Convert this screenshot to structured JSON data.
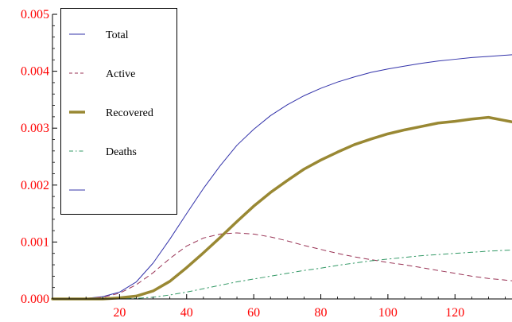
{
  "colors": {
    "tick_labels": "#ff0000",
    "axis": "#000000",
    "legend_border": "#000000"
  },
  "chart_data": {
    "type": "line",
    "title": "",
    "xlabel": "",
    "ylabel": "",
    "xlim": [
      0,
      137
    ],
    "ylim": [
      0,
      0.005
    ],
    "grid": false,
    "legend": "top-left",
    "x_ticks": [
      20,
      40,
      60,
      80,
      100,
      120
    ],
    "x_tick_labels": [
      "20",
      "40",
      "60",
      "80",
      "100",
      "120"
    ],
    "y_ticks": [
      0,
      0.001,
      0.002,
      0.003,
      0.004,
      0.005
    ],
    "y_tick_labels": [
      "0.000",
      "0.001",
      "0.002",
      "0.003",
      "0.004",
      "0.005"
    ],
    "series": [
      {
        "name": "Total",
        "color": "#3333aa",
        "style": "solid",
        "width": 1,
        "x": [
          0,
          10,
          15,
          20,
          25,
          30,
          35,
          40,
          45,
          50,
          55,
          60,
          65,
          70,
          75,
          80,
          85,
          90,
          95,
          100,
          105,
          110,
          115,
          120,
          125,
          130,
          137
        ],
        "y": [
          0,
          1e-05,
          4e-05,
          0.00012,
          0.0003,
          0.00063,
          0.00105,
          0.0015,
          0.00194,
          0.00234,
          0.0027,
          0.00298,
          0.00322,
          0.00341,
          0.00357,
          0.0037,
          0.00381,
          0.0039,
          0.00398,
          0.00404,
          0.00409,
          0.00414,
          0.00418,
          0.00421,
          0.00424,
          0.00426,
          0.00429
        ]
      },
      {
        "name": "Active",
        "color": "#993355",
        "style": "dashed",
        "width": 1,
        "x": [
          0,
          10,
          15,
          20,
          25,
          30,
          35,
          40,
          45,
          50,
          55,
          60,
          65,
          70,
          75,
          80,
          85,
          90,
          95,
          100,
          105,
          110,
          115,
          120,
          125,
          130,
          137
        ],
        "y": [
          0,
          1e-05,
          3e-05,
          0.0001,
          0.00025,
          0.00046,
          0.00071,
          0.00093,
          0.00107,
          0.00114,
          0.00116,
          0.00114,
          0.00109,
          0.00102,
          0.00094,
          0.00087,
          0.0008,
          0.00074,
          0.00069,
          0.00064,
          0.0006,
          0.00055,
          0.0005,
          0.00045,
          0.0004,
          0.00036,
          0.00032
        ]
      },
      {
        "name": "Recovered",
        "color": "#998833",
        "style": "solid",
        "width": 3.5,
        "x": [
          0,
          15,
          20,
          25,
          30,
          35,
          40,
          45,
          50,
          55,
          60,
          65,
          70,
          75,
          80,
          85,
          90,
          95,
          100,
          105,
          110,
          115,
          120,
          125,
          130,
          137
        ],
        "y": [
          0,
          0,
          2e-05,
          5e-05,
          0.00014,
          0.00031,
          0.00055,
          0.00081,
          0.00108,
          0.00136,
          0.00163,
          0.00187,
          0.00208,
          0.00228,
          0.00244,
          0.00258,
          0.00271,
          0.00281,
          0.0029,
          0.00297,
          0.00303,
          0.00309,
          0.00312,
          0.00316,
          0.00319,
          0.00311
        ]
      },
      {
        "name": "Deaths",
        "color": "#339966",
        "style": "dashdot",
        "width": 1,
        "x": [
          0,
          20,
          25,
          30,
          35,
          40,
          45,
          50,
          55,
          60,
          65,
          70,
          75,
          80,
          85,
          90,
          95,
          100,
          105,
          110,
          115,
          120,
          125,
          130,
          137
        ],
        "y": [
          0,
          0,
          1e-05,
          3e-05,
          7e-05,
          0.00012,
          0.00018,
          0.00024,
          0.0003,
          0.00035,
          0.0004,
          0.00045,
          0.0005,
          0.00054,
          0.00059,
          0.00063,
          0.00067,
          0.0007,
          0.00073,
          0.00076,
          0.00078,
          0.0008,
          0.00082,
          0.00084,
          0.00086
        ]
      },
      {
        "name": "",
        "color": "#3333aa",
        "style": "solid",
        "width": 1,
        "x": [],
        "y": []
      }
    ]
  }
}
